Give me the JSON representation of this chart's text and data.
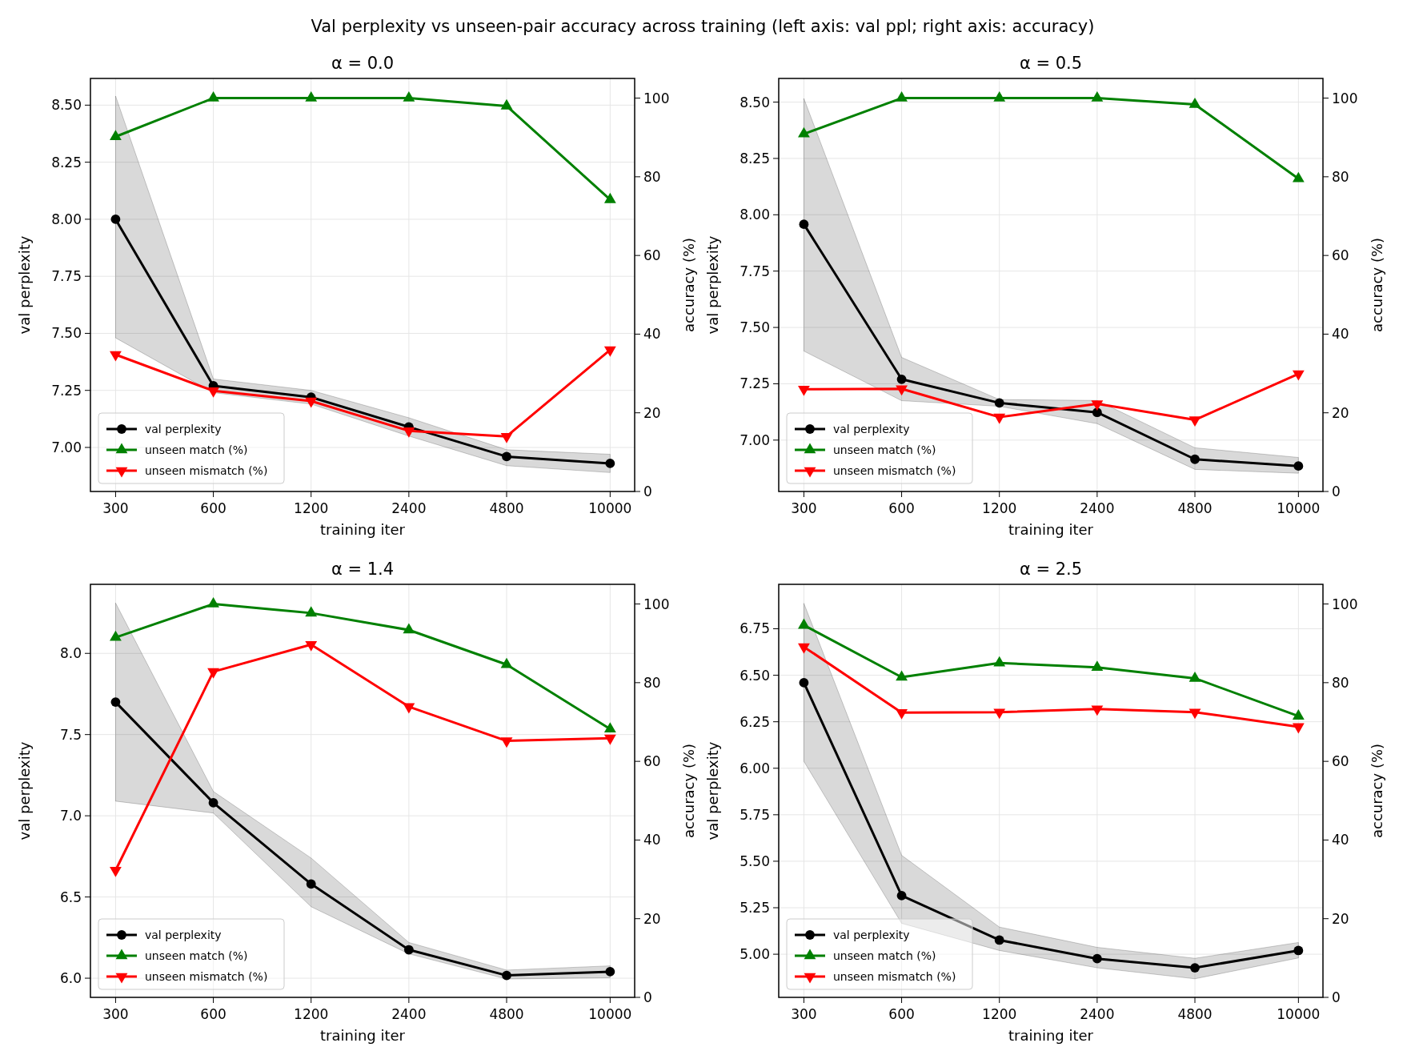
{
  "chart_data": [
    {
      "type": "line",
      "title": "α = 0.0",
      "annotations": [
        "Val perplexity vs unseen-pair accuracy across training (left axis: val ppl; right axis: accuracy)"
      ],
      "xlabel": "training iter",
      "ylabel": "val perplexity",
      "y2label": "accuracy (%)",
      "x": [
        300,
        600,
        1200,
        2400,
        4800,
        10000
      ],
      "log": "x",
      "xlim": [
        251,
        11900
      ],
      "xticks": [
        300,
        600,
        1200,
        2400,
        4800,
        10000
      ],
      "ylim": [
        6.807,
        8.617
      ],
      "yticks": [
        {
          "value": 7,
          "label": "7.00"
        },
        7.25,
        {
          "value": 7.5,
          "label": "7.50"
        },
        7.75,
        {
          "value": 8,
          "label": "8.00"
        },
        8.25,
        {
          "value": 8.5,
          "label": "8.50"
        }
      ],
      "y2lim": [
        0,
        105
      ],
      "y2ticks": [
        0,
        20,
        40,
        60,
        80,
        100
      ],
      "grid": true,
      "legend": "bottom left",
      "line_style": "solid",
      "series": [
        {
          "name": "val perplexity",
          "color": "#000000",
          "marker": "circle",
          "values": [
            8.0,
            7.27,
            7.22,
            7.09,
            6.96,
            6.93
          ],
          "lower": [
            7.48,
            7.24,
            7.19,
            7.05,
            6.92,
            6.89
          ],
          "upper": [
            8.54,
            7.3,
            7.25,
            7.13,
            6.99,
            6.97
          ]
        },
        {
          "name": "unseen match (%)",
          "color": "#008000",
          "marker": "triangle",
          "axis": "y2",
          "values": [
            90.2,
            100,
            100,
            100,
            98,
            74.2
          ]
        },
        {
          "name": "unseen mismatch (%)",
          "color": "#ff0000",
          "marker": "triangle-down",
          "axis": "y2",
          "values": [
            34.8,
            25.6,
            23,
            15.4,
            14,
            36
          ]
        }
      ]
    },
    {
      "type": "line",
      "title": "α = 0.5",
      "xlabel": "training iter",
      "ylabel": "val perplexity",
      "y2label": "accuracy (%)",
      "x": [
        300,
        600,
        1200,
        2400,
        4800,
        10000
      ],
      "log": "x",
      "xlim": [
        251,
        11900
      ],
      "xticks": [
        300,
        600,
        1200,
        2400,
        4800,
        10000
      ],
      "ylim": [
        6.772,
        8.605
      ],
      "yticks": [
        {
          "value": 7,
          "label": "7.00"
        },
        7.25,
        {
          "value": 7.5,
          "label": "7.50"
        },
        7.75,
        {
          "value": 8,
          "label": "8.00"
        },
        8.25,
        {
          "value": 8.5,
          "label": "8.50"
        }
      ],
      "y2lim": [
        0,
        105
      ],
      "y2ticks": [
        0,
        20,
        40,
        60,
        80,
        100
      ],
      "grid": true,
      "legend": "bottom left",
      "line_style": "solid",
      "series": [
        {
          "name": "val perplexity",
          "color": "#000000",
          "marker": "circle",
          "values": [
            7.958,
            7.27,
            7.165,
            7.123,
            6.915,
            6.885
          ],
          "lower": [
            7.395,
            7.175,
            7.15,
            7.073,
            6.87,
            6.853
          ],
          "upper": [
            8.516,
            7.367,
            7.18,
            7.176,
            6.966,
            6.923
          ]
        },
        {
          "name": "unseen match (%)",
          "color": "#008000",
          "marker": "triangle",
          "axis": "y2",
          "values": [
            90.9,
            100,
            100,
            100,
            98.4,
            79.5
          ]
        },
        {
          "name": "unseen mismatch (%)",
          "color": "#ff0000",
          "marker": "triangle-down",
          "axis": "y2",
          "values": [
            26,
            26.1,
            18.9,
            22.3,
            18.2,
            29.9
          ]
        }
      ]
    },
    {
      "type": "line",
      "title": "α = 1.4",
      "xlabel": "training iter",
      "ylabel": "val perplexity",
      "y2label": "accuracy (%)",
      "x": [
        300,
        600,
        1200,
        2400,
        4800,
        10000
      ],
      "log": "x",
      "xlim": [
        251,
        11900
      ],
      "xticks": [
        300,
        600,
        1200,
        2400,
        4800,
        10000
      ],
      "ylim": [
        5.882,
        8.425
      ],
      "yticks": [
        {
          "value": 6,
          "label": "6.0"
        },
        6.5,
        {
          "value": 7,
          "label": "7.0"
        },
        7.5,
        {
          "value": 8,
          "label": "8.0"
        }
      ],
      "y2lim": [
        0,
        105
      ],
      "y2ticks": [
        0,
        20,
        40,
        60,
        80,
        100
      ],
      "grid": true,
      "legend": "bottom left",
      "line_style": "solid",
      "series": [
        {
          "name": "val perplexity",
          "color": "#000000",
          "marker": "circle",
          "values": [
            7.7,
            7.08,
            6.58,
            6.175,
            6.017,
            6.04
          ],
          "lower": [
            7.09,
            7.017,
            6.44,
            6.15,
            5.995,
            6.003
          ],
          "upper": [
            8.31,
            7.15,
            6.74,
            6.22,
            6.05,
            6.076
          ]
        },
        {
          "name": "unseen match (%)",
          "color": "#008000",
          "marker": "triangle",
          "axis": "y2",
          "values": [
            91.5,
            100,
            97.7,
            93.4,
            84.6,
            68.2
          ]
        },
        {
          "name": "unseen mismatch (%)",
          "color": "#ff0000",
          "marker": "triangle-down",
          "axis": "y2",
          "values": [
            32.3,
            82.8,
            89.7,
            73.9,
            65.2,
            65.9
          ]
        }
      ]
    },
    {
      "type": "line",
      "title": "α = 2.5",
      "xlabel": "training iter",
      "ylabel": "val perplexity",
      "y2label": "accuracy (%)",
      "x": [
        300,
        600,
        1200,
        2400,
        4800,
        10000
      ],
      "log": "x",
      "xlim": [
        251,
        11900
      ],
      "xticks": [
        300,
        600,
        1200,
        2400,
        4800,
        10000
      ],
      "ylim": [
        4.768,
        6.989
      ],
      "yticks": [
        {
          "value": 5,
          "label": "5.00"
        },
        5.25,
        {
          "value": 5.5,
          "label": "5.50"
        },
        5.75,
        {
          "value": 6,
          "label": "6.00"
        },
        6.25,
        {
          "value": 6.5,
          "label": "6.50"
        },
        6.75
      ],
      "y2lim": [
        0,
        105
      ],
      "y2ticks": [
        0,
        20,
        40,
        60,
        80,
        100
      ],
      "grid": true,
      "legend": "bottom left",
      "line_style": "solid",
      "series": [
        {
          "name": "val perplexity",
          "color": "#000000",
          "marker": "circle",
          "values": [
            6.46,
            5.315,
            5.076,
            4.976,
            4.927,
            5.02
          ],
          "lower": [
            6.037,
            5.166,
            5.02,
            4.927,
            4.868,
            4.98
          ],
          "upper": [
            6.887,
            5.532,
            5.146,
            5.037,
            4.978,
            5.063
          ]
        },
        {
          "name": "unseen match (%)",
          "color": "#008000",
          "marker": "triangle",
          "axis": "y2",
          "values": [
            94.6,
            81.4,
            85,
            83.9,
            81.1,
            71.5
          ]
        },
        {
          "name": "unseen mismatch (%)",
          "color": "#ff0000",
          "marker": "triangle-down",
          "axis": "y2",
          "values": [
            89.1,
            72.4,
            72.5,
            73.3,
            72.5,
            68.8
          ]
        }
      ]
    }
  ]
}
